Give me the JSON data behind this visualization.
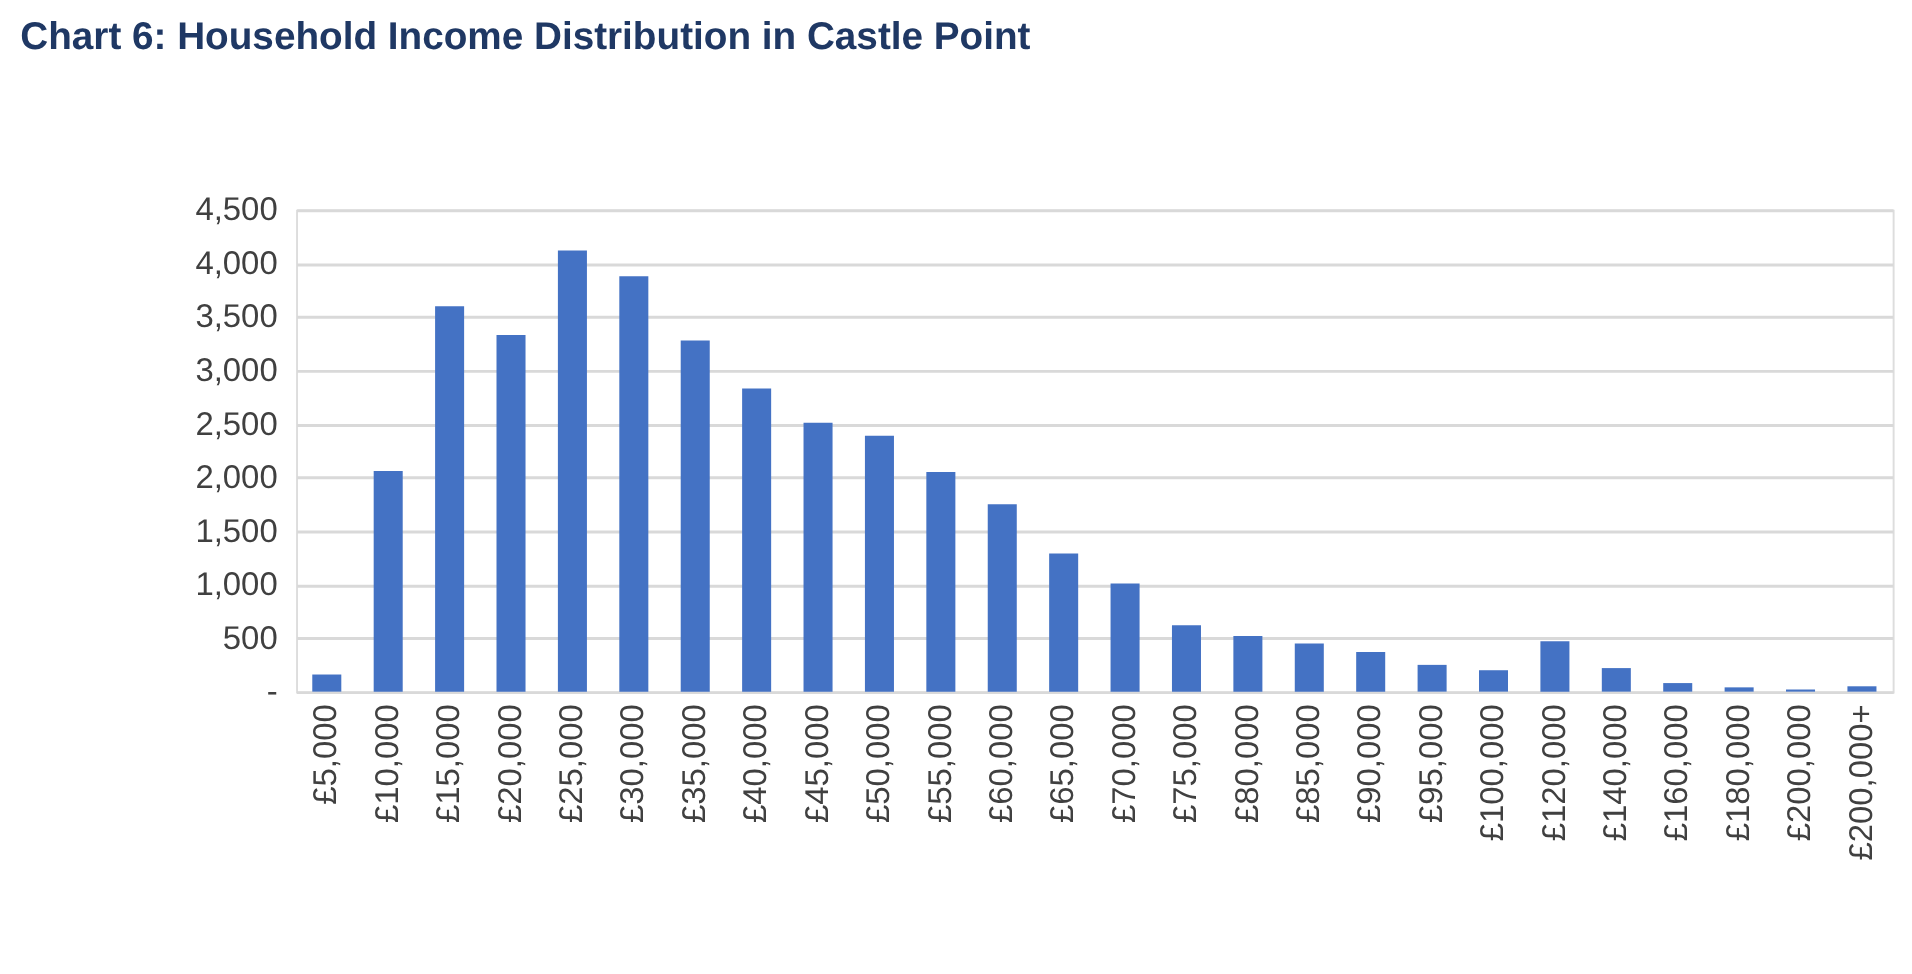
{
  "chart_data": {
    "type": "bar",
    "title": "Chart 6: Household Income Distribution in Castle Point",
    "categories": [
      "£5,000",
      "£10,000",
      "£15,000",
      "£20,000",
      "£25,000",
      "£30,000",
      "£35,000",
      "£40,000",
      "£45,000",
      "£50,000",
      "£55,000",
      "£60,000",
      "£65,000",
      "£70,000",
      "£75,000",
      "£80,000",
      "£85,000",
      "£90,000",
      "£95,000",
      "£100,000",
      "£120,000",
      "£140,000",
      "£160,000",
      "£180,000",
      "£200,000",
      "£200,000+"
    ],
    "values": [
      160,
      2060,
      3600,
      3330,
      4120,
      3880,
      3280,
      2830,
      2510,
      2390,
      2050,
      1750,
      1290,
      1010,
      620,
      520,
      450,
      370,
      250,
      200,
      470,
      220,
      80,
      40,
      20,
      50
    ],
    "color": "#4472c4",
    "ylim": [
      0,
      4500
    ],
    "yticks": [
      {
        "value": 0,
        "label": "-"
      },
      {
        "value": 500,
        "label": "500"
      },
      {
        "value": 1000,
        "label": "1,000"
      },
      {
        "value": 1500,
        "label": "1,500"
      },
      {
        "value": 2000,
        "label": "2,000"
      },
      {
        "value": 2500,
        "label": "2,500"
      },
      {
        "value": 3000,
        "label": "3,000"
      },
      {
        "value": 3500,
        "label": "3,500"
      },
      {
        "value": 4000,
        "label": "4,000"
      },
      {
        "value": 4500,
        "label": "4,500"
      }
    ],
    "grid": "y"
  }
}
